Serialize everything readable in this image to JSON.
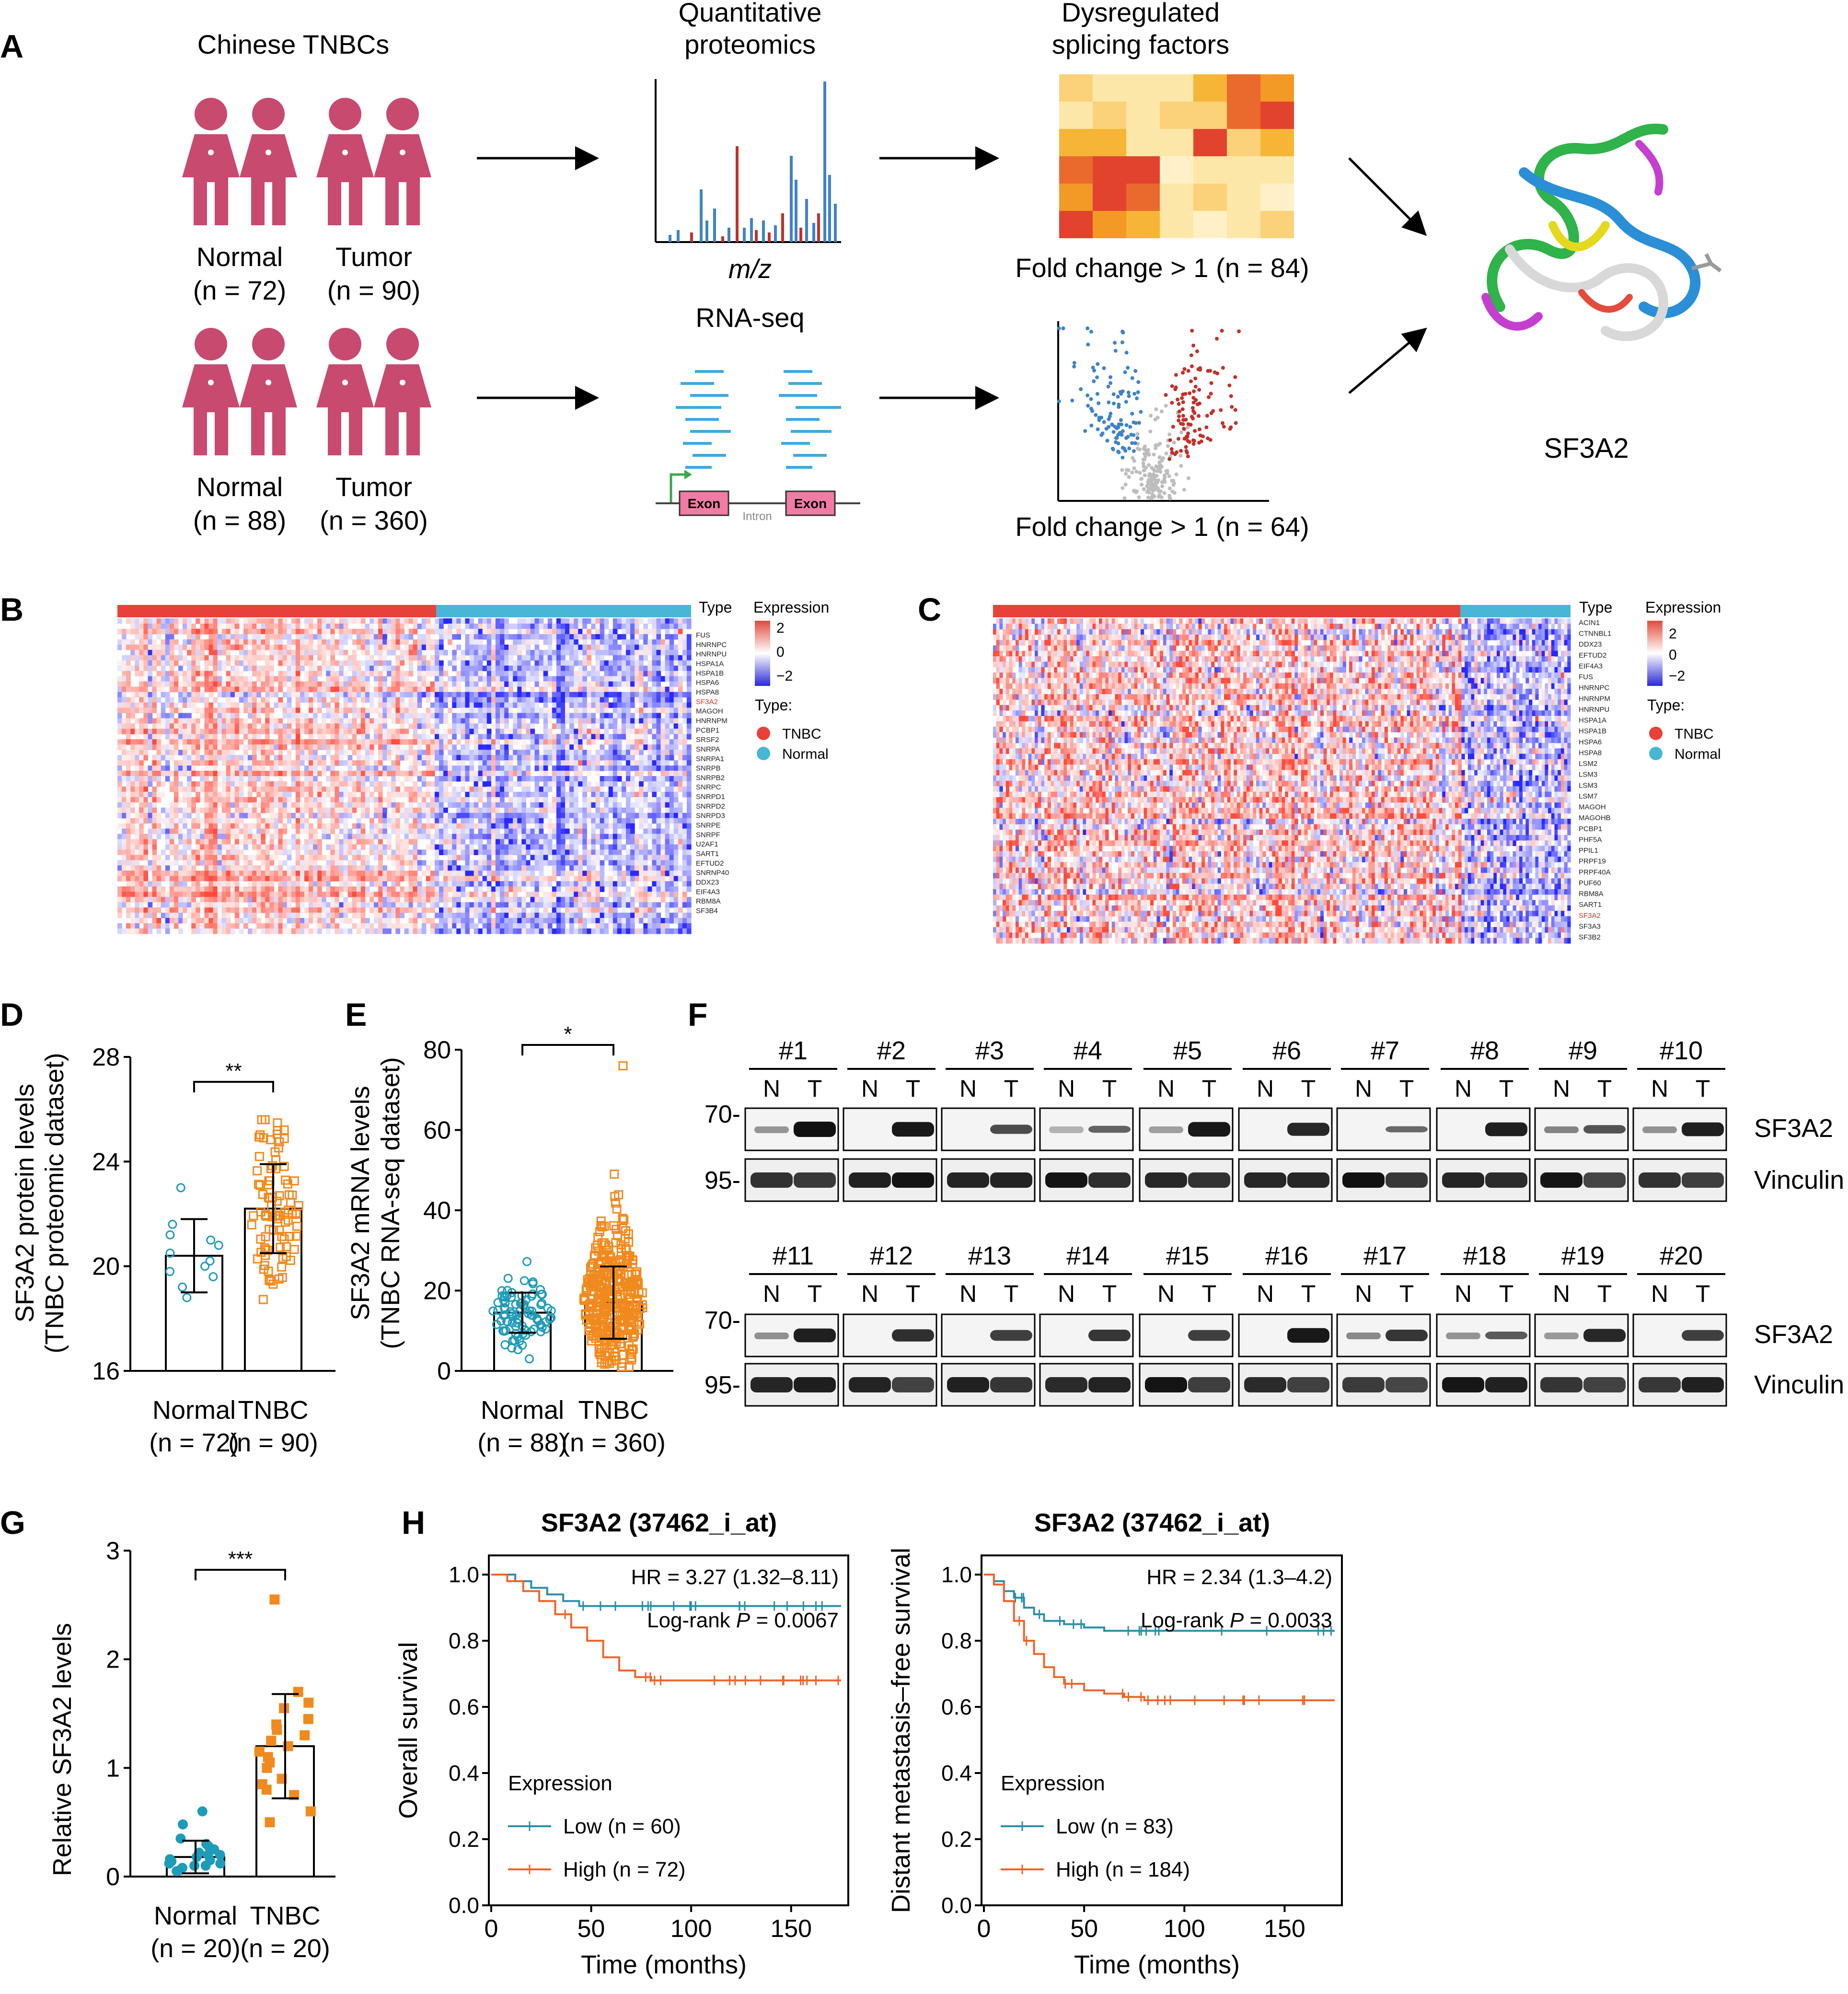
{
  "panels": [
    "A",
    "B",
    "C",
    "D",
    "E",
    "F",
    "G",
    "H"
  ],
  "colors": {
    "tumor": "#e8413a",
    "normal": "#49b6d6",
    "tnbc_pt": "#f18a1e",
    "normal_pt": "#1e9bb8",
    "person": "#c94a6f",
    "heat_red": "#e34b3b",
    "heat_blue": "#2a2ad6"
  },
  "panelA": {
    "cohort_title": "Chinese TNBCs",
    "row1": {
      "normal": "Normal",
      "normal_n": "(n = 72)",
      "tumor": "Tumor",
      "tumor_n": "(n = 90)"
    },
    "row2": {
      "normal": "Normal",
      "normal_n": "(n = 88)",
      "tumor": "Tumor",
      "tumor_n": "(n = 360)"
    },
    "proteomics_title_1": "Quantitative",
    "proteomics_title_2": "proteomics",
    "mz": "m/z",
    "rnaseq_title": "RNA-seq",
    "exon": "Exon",
    "intron": "Intron",
    "dysreg_title_1": "Dysregulated",
    "dysreg_title_2": "splicing factors",
    "fc_top": "Fold change > 1 (n = 84)",
    "fc_bottom": "Fold change > 1 (n = 64)",
    "protein": "SF3A2"
  },
  "panelB": {
    "genes": [
      "FUS",
      "HNRNPC",
      "HNRNPU",
      "HSPA1A",
      "HSPA1B",
      "HSPA6",
      "HSPA8",
      "SF3A2",
      "MAGOH",
      "HNRNPM",
      "PCBP1",
      "SRSF2",
      "SNRPA",
      "SNRPA1",
      "SNRPB",
      "SNRPB2",
      "SNRPC",
      "SNRPD1",
      "SNRPD2",
      "SNRPD3",
      "SNRPE",
      "SNRPF",
      "U2AF1",
      "SART1",
      "EFTUD2",
      "SNRNP40",
      "DDX23",
      "EIF4A3",
      "RBM8A",
      "SF3B4"
    ],
    "highlight": "SF3A2",
    "legend": {
      "type": "Type",
      "expression": "Expression",
      "ticks": [
        "2",
        "0",
        "−2"
      ],
      "type_colon": "Type:",
      "tnbc": "TNBC",
      "normal": "Normal"
    }
  },
  "panelC": {
    "genes": [
      "ACIN1",
      "CTNNBL1",
      "DDX23",
      "EFTUD2",
      "EIF4A3",
      "FUS",
      "HNRNPC",
      "HNRNPM",
      "HNRNPU",
      "HSPA1A",
      "HSPA1B",
      "HSPA6",
      "HSPA8",
      "LSM2",
      "LSM3",
      "LSM3",
      "LSM7",
      "MAGOH",
      "MAGOHB",
      "PCBP1",
      "PHF5A",
      "PPIL1",
      "PRPF19",
      "PRPF40A",
      "PUF60",
      "RBM8A",
      "SART1",
      "SF3A2",
      "SF3A3",
      "SF3B2"
    ],
    "highlight": "SF3A2",
    "legend": {
      "type": "Type",
      "expression": "Expression",
      "ticks": [
        "2",
        "0",
        "−2"
      ],
      "type_colon": "Type:",
      "tnbc": "TNBC",
      "normal": "Normal"
    }
  },
  "panelD": {
    "ylabel_1": "SF3A2 protein levels",
    "ylabel_2": "(TNBC proteomic dataset)",
    "yticks": [
      "16",
      "20",
      "24",
      "28"
    ],
    "ylim": [
      16,
      28
    ],
    "sig": "**",
    "groups": [
      {
        "label": "Normal",
        "n": "(n = 72)",
        "mean": 20.4,
        "sd": 1.4
      },
      {
        "label": "TNBC",
        "n": "(n = 90)",
        "mean": 22.2,
        "sd": 1.7
      }
    ]
  },
  "panelE": {
    "ylabel_1": "SF3A2 mRNA levels",
    "ylabel_2": "(TNBC RNA-seq dataset)",
    "yticks": [
      "0",
      "20",
      "40",
      "60",
      "80"
    ],
    "ylim": [
      0,
      80
    ],
    "sig": "*",
    "groups": [
      {
        "label": "Normal",
        "n": "(n = 88)",
        "mean": 14.5,
        "sd": 5
      },
      {
        "label": "TNBC",
        "n": "(n = 360)",
        "mean": 17,
        "sd": 9
      }
    ]
  },
  "panelF": {
    "samples_row1": [
      "#1",
      "#2",
      "#3",
      "#4",
      "#5",
      "#6",
      "#7",
      "#8",
      "#9",
      "#10"
    ],
    "samples_row2": [
      "#11",
      "#12",
      "#13",
      "#14",
      "#15",
      "#16",
      "#17",
      "#18",
      "#19",
      "#20"
    ],
    "lane_n": "N",
    "lane_t": "T",
    "mw_70": "70-",
    "mw_95": "95-",
    "sf3a2": "SF3A2",
    "vinculin": "Vinculin",
    "t_intensity_row1": [
      1.0,
      0.95,
      0.6,
      0.45,
      0.95,
      0.85,
      0.4,
      0.9,
      0.55,
      0.9
    ],
    "t_intensity_row2": [
      0.9,
      0.8,
      0.7,
      0.75,
      0.7,
      0.95,
      0.75,
      0.5,
      0.85,
      0.7
    ]
  },
  "panelG": {
    "ylabel": "Relative SF3A2 levels",
    "yticks": [
      "0",
      "1",
      "2",
      "3"
    ],
    "ylim": [
      0,
      3
    ],
    "sig": "***",
    "groups": [
      {
        "label": "Normal",
        "n": "(n = 20)",
        "mean": 0.18,
        "sd": 0.15
      },
      {
        "label": "TNBC",
        "n": "(n = 20)",
        "mean": 1.2,
        "sd": 0.48
      }
    ]
  },
  "panelH": {
    "plots": [
      {
        "title": "SF3A2 (37462_i_at)",
        "ylabel": "Overall survival",
        "hr": "HR = 3.27 (1.32–8.11)",
        "logrank_prefix": "Log-rank ",
        "logrank_p": "P",
        "logrank_value": " = 0.0067",
        "legend_title": "Expression",
        "low": "Low (n = 60)",
        "high": "High (n = 72)"
      },
      {
        "title": "SF3A2 (37462_i_at)",
        "ylabel": "Distant metastasis–free survival",
        "hr": "HR = 2.34 (1.3–4.2)",
        "logrank_prefix": "Log-rank ",
        "logrank_p": "P",
        "logrank_value": " = 0.0033",
        "legend_title": "Expression",
        "low": "Low (n = 83)",
        "high": "High (n = 184)"
      }
    ],
    "xlabel": "Time (months)",
    "xticks": [
      "0",
      "50",
      "100",
      "150"
    ],
    "yticks": [
      "0.0",
      "0.2",
      "0.4",
      "0.6",
      "0.8",
      "1.0"
    ]
  },
  "chart_data": [
    {
      "type": "scatter",
      "panel": "D",
      "title": "",
      "xlabel": "",
      "ylabel": "SF3A2 protein levels (TNBC proteomic dataset)",
      "ylim": [
        16,
        28
      ],
      "categories": [
        "Normal",
        "TNBC"
      ],
      "series": [
        {
          "name": "Normal",
          "mean": 20.4,
          "sd": 1.4
        },
        {
          "name": "TNBC",
          "mean": 22.2,
          "sd": 1.7
        }
      ]
    },
    {
      "type": "scatter",
      "panel": "E",
      "title": "",
      "xlabel": "",
      "ylabel": "SF3A2 mRNA levels (TNBC RNA-seq dataset)",
      "ylim": [
        0,
        80
      ],
      "categories": [
        "Normal",
        "TNBC"
      ],
      "series": [
        {
          "name": "Normal",
          "mean": 14.5,
          "sd": 5
        },
        {
          "name": "TNBC",
          "mean": 17,
          "sd": 9
        }
      ]
    },
    {
      "type": "scatter",
      "panel": "G",
      "title": "",
      "xlabel": "",
      "ylabel": "Relative SF3A2 levels",
      "ylim": [
        0,
        3
      ],
      "categories": [
        "Normal",
        "TNBC"
      ],
      "series": [
        {
          "name": "Normal",
          "mean": 0.18,
          "sd": 0.15,
          "values": [
            0.48,
            0.6,
            0.35,
            0.25,
            0.3,
            0.2,
            0.15,
            0.1,
            0.18,
            0.12,
            0.22,
            0.05,
            0.08,
            0.14,
            0.1,
            0.16,
            0.28,
            0.06,
            0.12,
            0.2
          ]
        },
        {
          "name": "TNBC",
          "mean": 1.2,
          "sd": 0.48,
          "values": [
            2.55,
            1.7,
            1.6,
            1.55,
            1.45,
            1.4,
            1.35,
            1.3,
            1.25,
            1.2,
            1.15,
            1.1,
            1.05,
            1.0,
            0.9,
            0.85,
            0.8,
            0.75,
            0.6,
            0.5
          ]
        }
      ]
    },
    {
      "type": "line",
      "panel": "H-left",
      "title": "SF3A2 (37462_i_at)",
      "xlabel": "Time (months)",
      "ylabel": "Overall survival",
      "xlim": [
        0,
        175
      ],
      "ylim": [
        0,
        1
      ],
      "series": [
        {
          "name": "Low (n = 60)",
          "x": [
            0,
            12,
            20,
            28,
            36,
            44,
            175
          ],
          "y": [
            1.0,
            0.98,
            0.96,
            0.94,
            0.92,
            0.905,
            0.905
          ]
        },
        {
          "name": "High (n = 72)",
          "x": [
            0,
            8,
            16,
            24,
            32,
            40,
            48,
            56,
            64,
            72,
            80,
            175
          ],
          "y": [
            1.0,
            0.98,
            0.95,
            0.92,
            0.88,
            0.84,
            0.8,
            0.75,
            0.71,
            0.69,
            0.68,
            0.68
          ]
        }
      ]
    },
    {
      "type": "line",
      "panel": "H-right",
      "title": "SF3A2 (37462_i_at)",
      "xlabel": "Time (months)",
      "ylabel": "Distant metastasis–free survival",
      "xlim": [
        0,
        175
      ],
      "ylim": [
        0,
        1
      ],
      "series": [
        {
          "name": "Low (n = 83)",
          "x": [
            0,
            5,
            10,
            15,
            20,
            25,
            30,
            40,
            50,
            60,
            175
          ],
          "y": [
            1.0,
            0.98,
            0.95,
            0.93,
            0.9,
            0.88,
            0.86,
            0.85,
            0.84,
            0.83,
            0.83
          ]
        },
        {
          "name": "High (n = 184)",
          "x": [
            0,
            5,
            10,
            15,
            20,
            25,
            30,
            35,
            40,
            50,
            60,
            70,
            80,
            175
          ],
          "y": [
            1.0,
            0.97,
            0.92,
            0.86,
            0.8,
            0.76,
            0.72,
            0.69,
            0.67,
            0.65,
            0.64,
            0.63,
            0.62,
            0.62
          ]
        }
      ]
    }
  ]
}
